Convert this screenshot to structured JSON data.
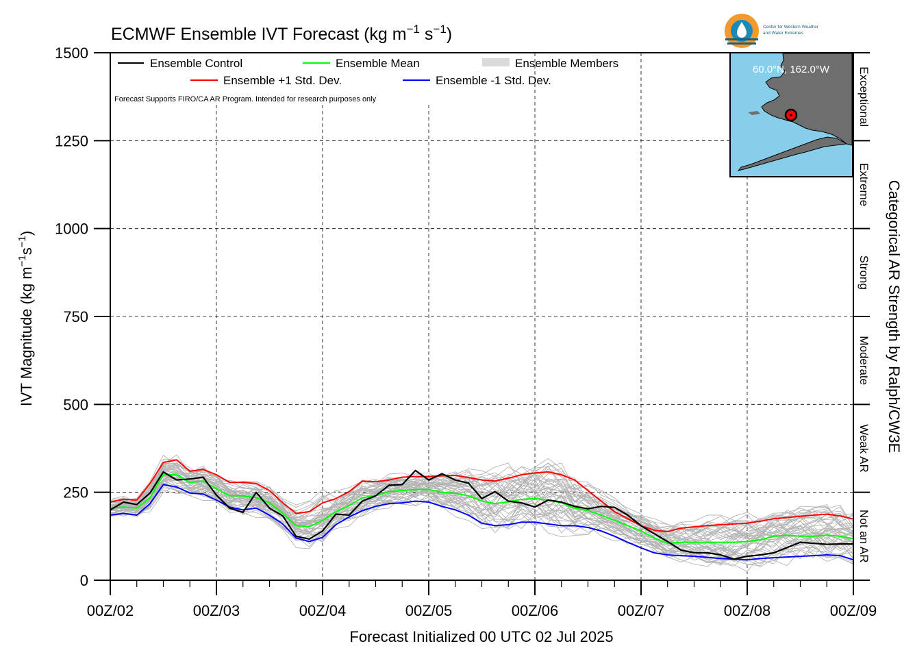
{
  "chart_data": {
    "type": "line",
    "title": "ECMWF Ensemble IVT Forecast (kg m",
    "title_unit_parts": [
      "−1",
      " s",
      "−1",
      ")"
    ],
    "xlabel": "Forecast Initialized 00 UTC 02 Jul 2025",
    "ylabel": "IVT Magnitude (kg m",
    "ylabel_unit_parts": [
      "−1",
      "s",
      "−1",
      ")"
    ],
    "right_label": "Categorical AR Strength by Ralph/CW3E",
    "note": "Forecast Supports FIRO/CA AR Program. Intended for research purposes only",
    "ylim": [
      0,
      1500
    ],
    "xlim": [
      0,
      168
    ],
    "x_tick_labels": [
      "00Z/02",
      "00Z/03",
      "00Z/04",
      "00Z/05",
      "00Z/06",
      "00Z/07",
      "00Z/08",
      "00Z/09"
    ],
    "x_tick_hours": [
      0,
      24,
      48,
      72,
      96,
      120,
      144,
      168
    ],
    "y_ticks": [
      0,
      250,
      500,
      750,
      1000,
      1250,
      1500
    ],
    "grid": true,
    "legend_position": "top-left",
    "x_hours": [
      0,
      3,
      6,
      9,
      12,
      15,
      18,
      21,
      24,
      27,
      30,
      33,
      36,
      39,
      42,
      45,
      48,
      51,
      54,
      57,
      60,
      63,
      66,
      69,
      72,
      75,
      78,
      81,
      84,
      87,
      90,
      93,
      96,
      99,
      102,
      105,
      108,
      111,
      114,
      117,
      120,
      123,
      126,
      129,
      132,
      135,
      138,
      141,
      144,
      147,
      150,
      153,
      156,
      159,
      162,
      165,
      168
    ],
    "series": [
      {
        "name": "Ensemble Control",
        "color": "#000000",
        "values": [
          200,
          222,
          215,
          248,
          308,
          285,
          288,
          293,
          242,
          205,
          193,
          250,
          205,
          183,
          125,
          117,
          140,
          188,
          185,
          225,
          240,
          270,
          272,
          312,
          285,
          303,
          285,
          276,
          232,
          252,
          225,
          220,
          208,
          228,
          222,
          210,
          203,
          210,
          207,
          185,
          155,
          132,
          110,
          86,
          78,
          78,
          72,
          60,
          68,
          72,
          78,
          93,
          108,
          105,
          102,
          103,
          103
        ]
      },
      {
        "name": "Ensemble Mean",
        "color": "#00ff00",
        "values": [
          205,
          208,
          205,
          235,
          300,
          300,
          278,
          282,
          260,
          240,
          240,
          235,
          220,
          190,
          155,
          152,
          170,
          195,
          212,
          235,
          240,
          252,
          255,
          258,
          258,
          250,
          247,
          240,
          225,
          218,
          223,
          230,
          232,
          228,
          220,
          205,
          198,
          185,
          170,
          155,
          140,
          120,
          105,
          108,
          108,
          108,
          108,
          108,
          110,
          115,
          125,
          128,
          125,
          125,
          128,
          125,
          118
        ]
      },
      {
        "name": "Ensemble +1 Std. Dev.",
        "color": "#ff0000",
        "values": [
          222,
          230,
          228,
          275,
          335,
          342,
          310,
          315,
          300,
          278,
          278,
          275,
          255,
          220,
          190,
          195,
          220,
          232,
          252,
          282,
          280,
          285,
          293,
          295,
          295,
          297,
          298,
          292,
          285,
          282,
          290,
          300,
          305,
          308,
          300,
          285,
          255,
          225,
          195,
          175,
          155,
          142,
          138,
          148,
          152,
          155,
          158,
          160,
          162,
          168,
          175,
          178,
          182,
          185,
          188,
          183,
          174
        ]
      },
      {
        "name": "Ensemble -1 Std. Dev.",
        "color": "#0000ff",
        "values": [
          185,
          190,
          185,
          218,
          272,
          265,
          248,
          245,
          228,
          208,
          200,
          205,
          185,
          160,
          120,
          110,
          122,
          158,
          180,
          198,
          210,
          218,
          220,
          225,
          222,
          210,
          200,
          185,
          162,
          155,
          158,
          165,
          165,
          160,
          155,
          155,
          150,
          140,
          125,
          108,
          92,
          78,
          72,
          70,
          68,
          65,
          62,
          60,
          58,
          62,
          64,
          66,
          68,
          70,
          72,
          70,
          58
        ]
      }
    ],
    "ensemble_members_label": "Ensemble Members",
    "ensemble_members_color": "#b4b4b4",
    "ensemble_member_count": 50,
    "categories_right": [
      "Not an AR",
      "Weak AR",
      "Moderate",
      "Strong",
      "Extreme",
      "Exceptional"
    ],
    "category_thresholds": [
      0,
      250,
      500,
      750,
      1000,
      1250,
      1500
    ],
    "inset_map": {
      "label": "60.0°N, 162.0°W",
      "ocean_color": "#87ceeb",
      "land_color": "#6e6e6e",
      "marker_color": "#ff0000"
    },
    "logo": {
      "text_lines": [
        "Center for Western Weather",
        "and Water Extremes"
      ],
      "colors": [
        "#f29a2e",
        "#1b8ab8",
        "#1d5f7a"
      ]
    }
  }
}
